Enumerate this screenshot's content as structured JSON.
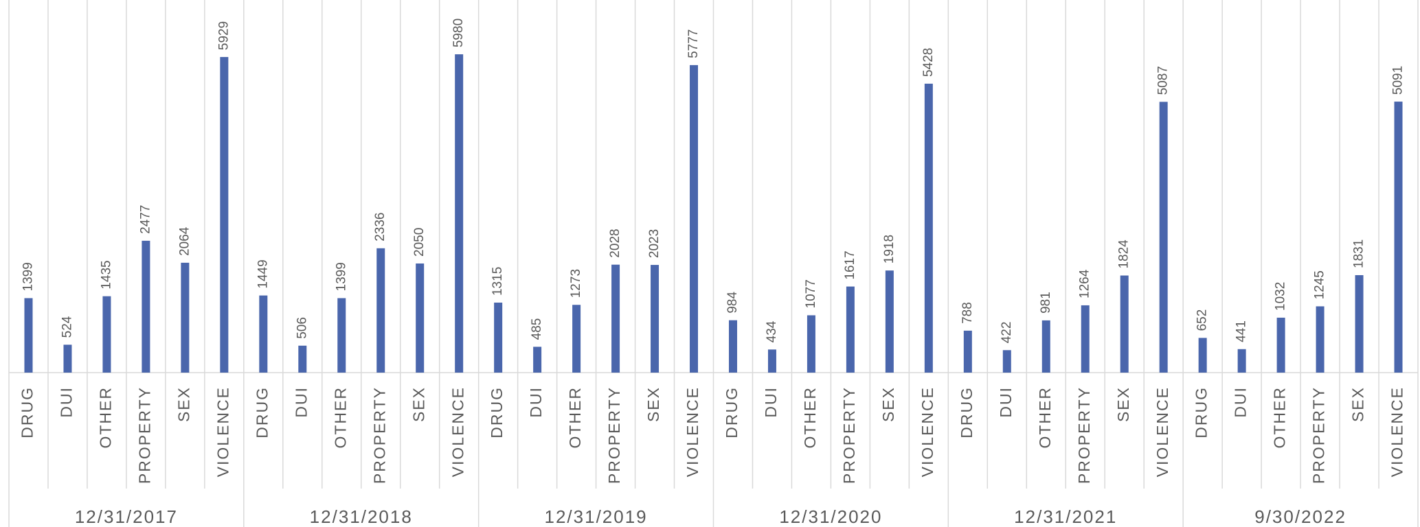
{
  "chart_data": {
    "type": "bar",
    "categories": [
      "DRUG",
      "DUI",
      "OTHER",
      "PROPERTY",
      "SEX",
      "VIOLENCE"
    ],
    "groups": [
      {
        "name": "12/31/2017",
        "values": [
          1399,
          524,
          1435,
          2477,
          2064,
          5929
        ]
      },
      {
        "name": "12/31/2018",
        "values": [
          1449,
          506,
          1399,
          2336,
          2050,
          5980
        ]
      },
      {
        "name": "12/31/2019",
        "values": [
          1315,
          485,
          1273,
          2028,
          2023,
          5777
        ]
      },
      {
        "name": "12/31/2020",
        "values": [
          984,
          434,
          1077,
          1617,
          1918,
          5428
        ]
      },
      {
        "name": "12/31/2021",
        "values": [
          788,
          422,
          981,
          1264,
          1824,
          5087
        ]
      },
      {
        "name": "9/30/2022",
        "values": [
          652,
          441,
          1032,
          1245,
          1831,
          5091
        ]
      }
    ],
    "color": "#4a66ac",
    "ylim": [
      0,
      7000
    ],
    "grid": true
  }
}
